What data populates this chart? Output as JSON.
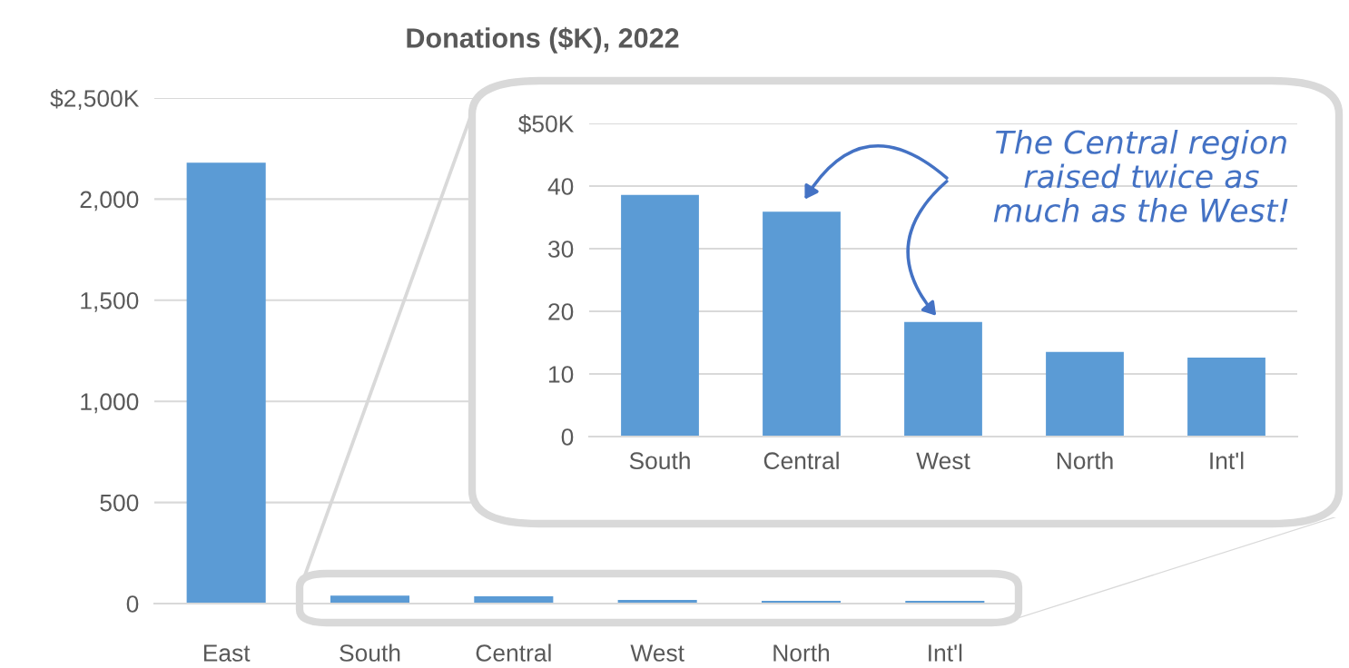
{
  "chart_data": [
    {
      "type": "bar",
      "title": "Donations ($K), 2022",
      "categories": [
        "East",
        "South",
        "Central",
        "West",
        "North",
        "Int'l"
      ],
      "values": [
        2180,
        39,
        36,
        18,
        14,
        13
      ],
      "color": "#5b9bd5",
      "ylim": [
        0,
        2500
      ],
      "yticks": [
        0,
        500,
        {
          "value": 1000,
          "label": "1,000"
        },
        {
          "value": 1500,
          "label": "1,500"
        },
        {
          "value": 2000,
          "label": "2,000"
        },
        {
          "value": 2500,
          "label": "$2,500K"
        }
      ],
      "grid": "y"
    },
    {
      "type": "bar",
      "categories": [
        "South",
        "Central",
        "West",
        "North",
        "Int'l"
      ],
      "values": [
        38.6,
        35.9,
        18.3,
        13.5,
        12.6
      ],
      "color": "#5b9bd5",
      "ylim": [
        0,
        50
      ],
      "yticks": [
        0,
        10,
        20,
        30,
        40,
        {
          "value": 50,
          "label": "$50K"
        }
      ],
      "grid": "y",
      "annotations": [
        "The Central region\nraised twice as\nmuch as the West!"
      ]
    }
  ]
}
